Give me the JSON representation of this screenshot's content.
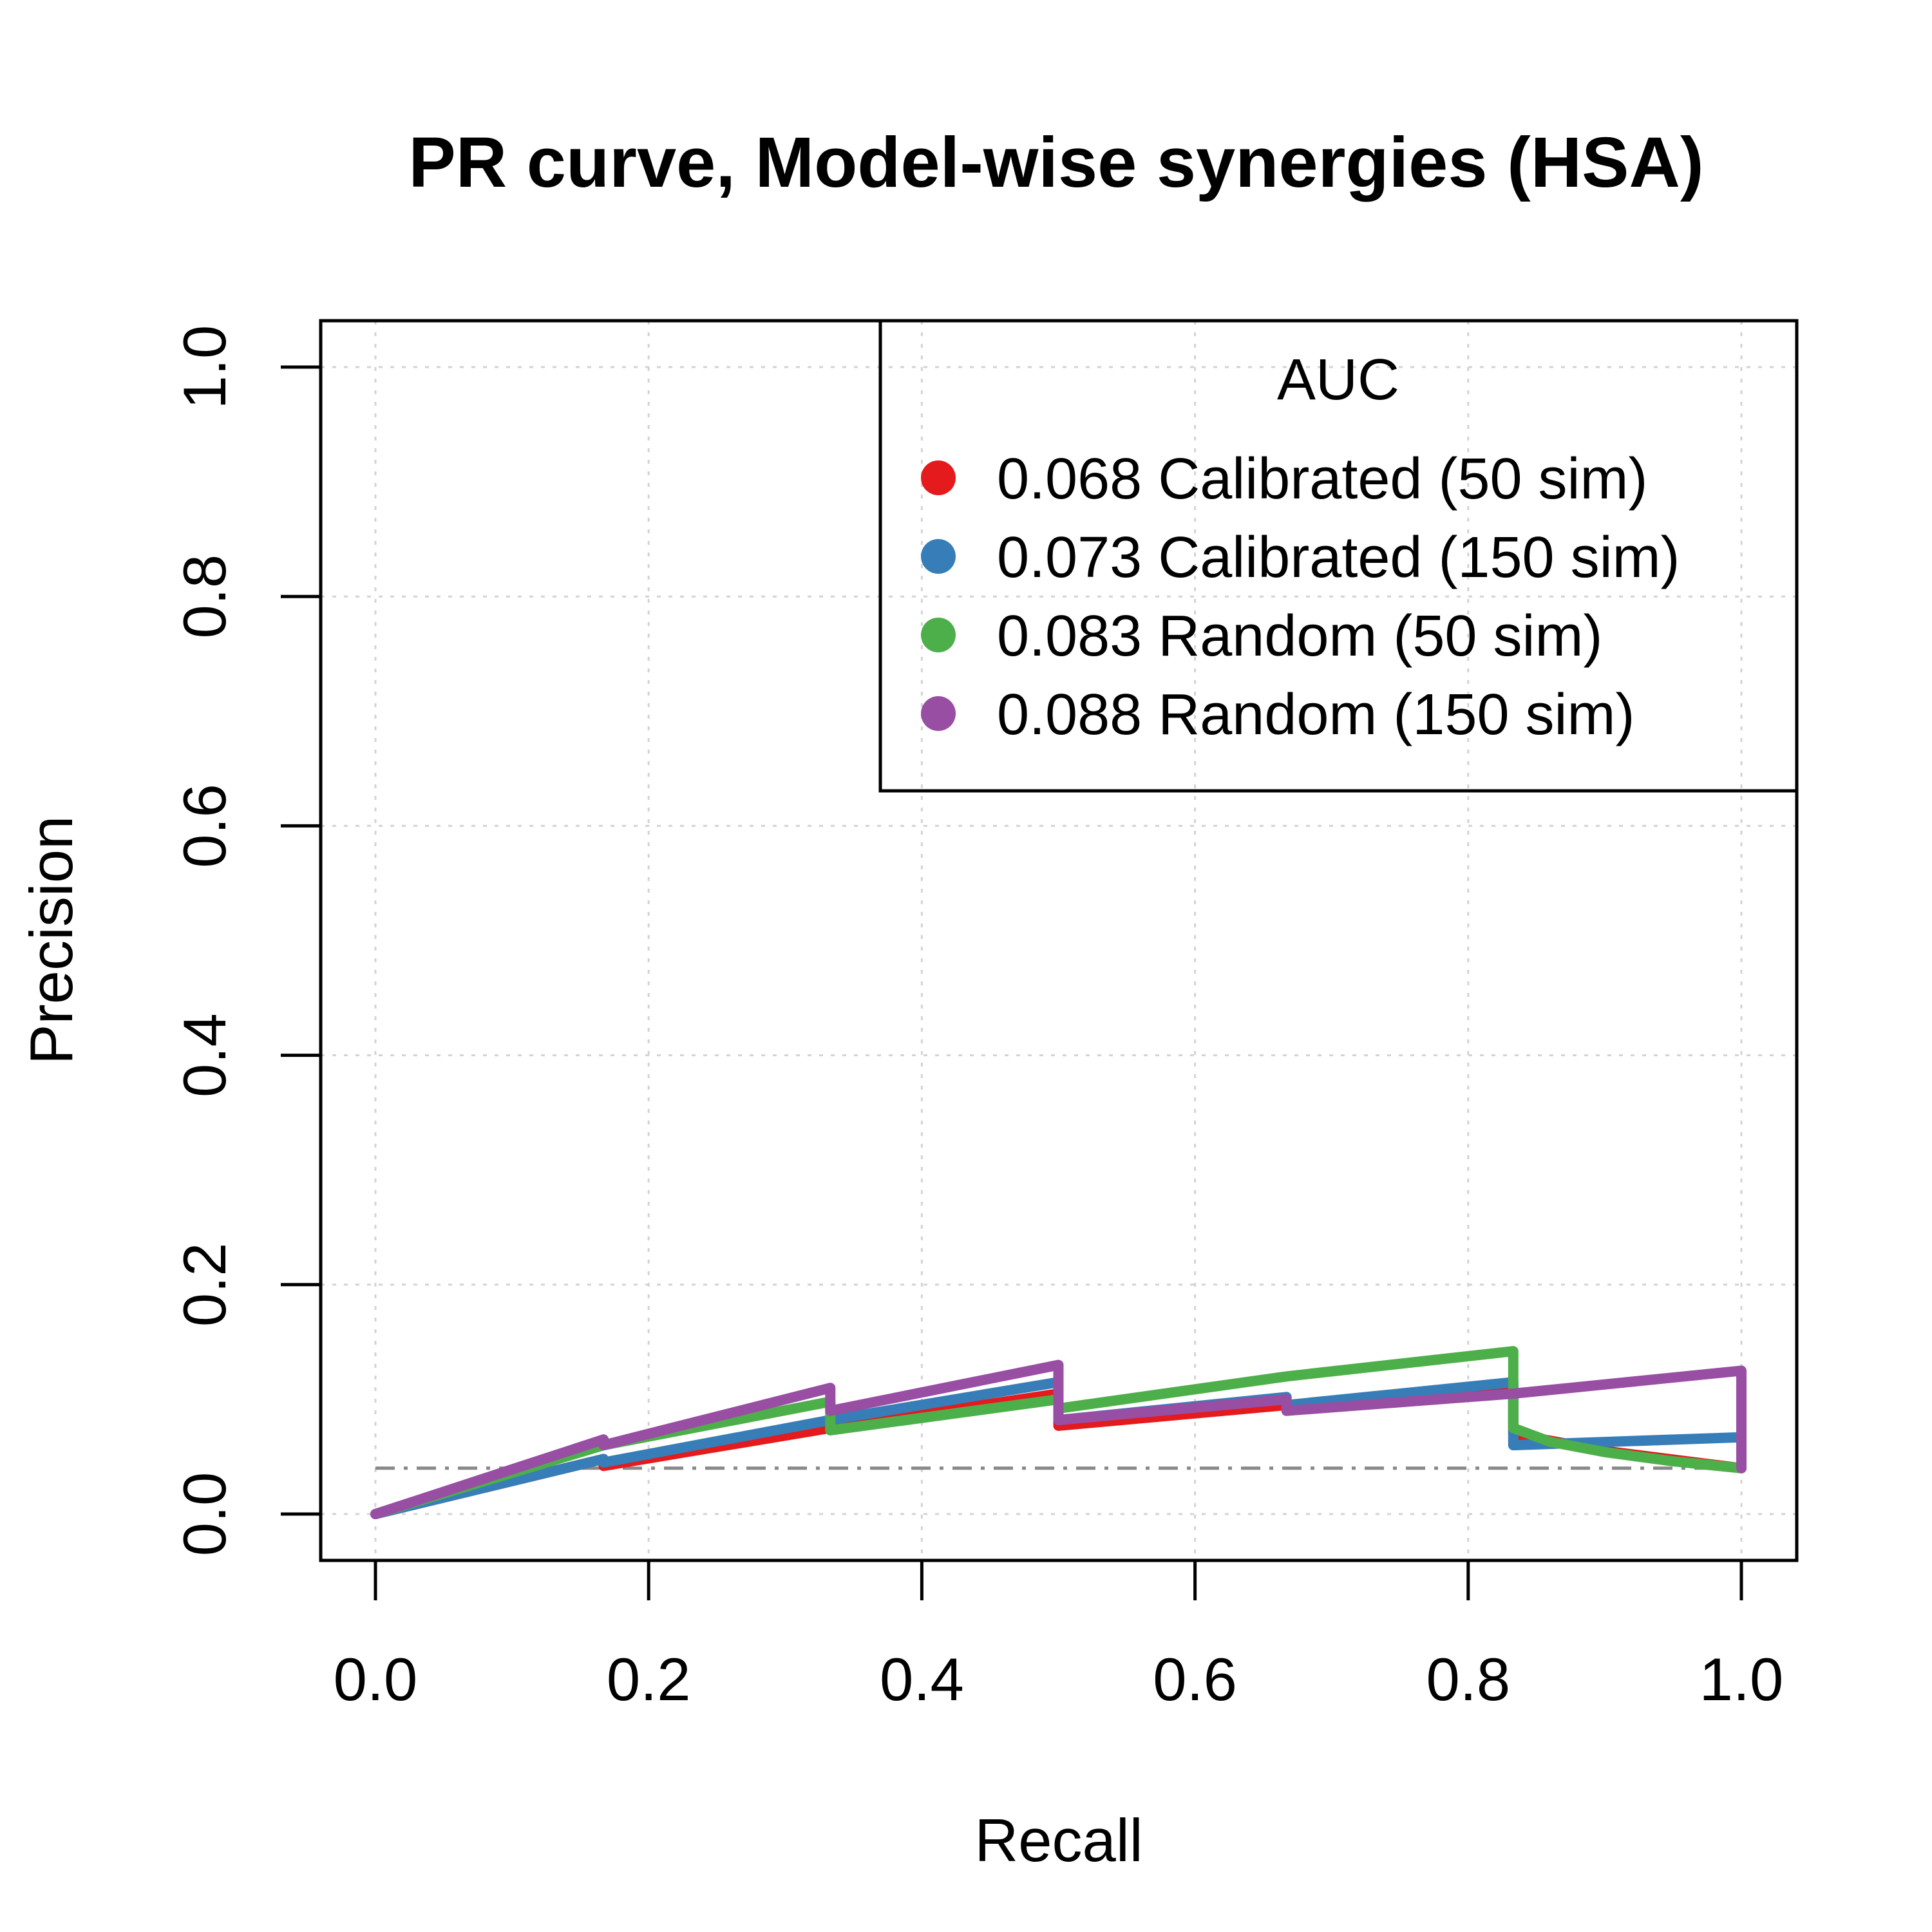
{
  "chart_data": {
    "type": "line",
    "title": "PR curve, Model-wise synergies (HSA)",
    "xlabel": "Recall",
    "ylabel": "Precision",
    "xlim": [
      0,
      1
    ],
    "ylim": [
      0,
      1
    ],
    "xticks": [
      "0.0",
      "0.2",
      "0.4",
      "0.6",
      "0.8",
      "1.0"
    ],
    "yticks": [
      "0.0",
      "0.2",
      "0.4",
      "0.6",
      "0.8",
      "1.0"
    ],
    "grid": true,
    "legend": {
      "placement": "top-right",
      "title": "AUC"
    },
    "baseline": {
      "y": 0.04,
      "style": "dash-dot",
      "color": "#888888"
    },
    "series": [
      {
        "name": "0.068 Calibrated (50 sim)",
        "color": "#E41A1C",
        "points": [
          [
            0,
            0
          ],
          [
            0.167,
            0.048
          ],
          [
            0.167,
            0.042
          ],
          [
            0.333,
            0.075
          ],
          [
            0.5,
            0.105
          ],
          [
            0.5,
            0.077
          ],
          [
            0.667,
            0.095
          ],
          [
            0.833,
            0.112
          ],
          [
            0.833,
            0.07
          ],
          [
            0.9,
            0.055
          ],
          [
            1.0,
            0.04
          ]
        ]
      },
      {
        "name": "0.073 Calibrated (150 sim)",
        "color": "#377EB8",
        "points": [
          [
            0,
            0
          ],
          [
            0.167,
            0.048
          ],
          [
            0.167,
            0.045
          ],
          [
            0.333,
            0.082
          ],
          [
            0.5,
            0.115
          ],
          [
            0.5,
            0.082
          ],
          [
            0.667,
            0.102
          ],
          [
            0.667,
            0.095
          ],
          [
            0.833,
            0.115
          ],
          [
            0.833,
            0.06
          ],
          [
            1.0,
            0.067
          ]
        ]
      },
      {
        "name": "0.083 Random (50 sim)",
        "color": "#4DAF4A",
        "points": [
          [
            0,
            0
          ],
          [
            0.167,
            0.06
          ],
          [
            0.333,
            0.098
          ],
          [
            0.333,
            0.073
          ],
          [
            0.5,
            0.1
          ],
          [
            0.5,
            0.092
          ],
          [
            0.667,
            0.12
          ],
          [
            0.833,
            0.142
          ],
          [
            0.833,
            0.075
          ],
          [
            0.86,
            0.063
          ],
          [
            0.9,
            0.054
          ],
          [
            0.95,
            0.046
          ],
          [
            1.0,
            0.04
          ]
        ]
      },
      {
        "name": "0.088 Random (150 sim)",
        "color": "#984EA3",
        "points": [
          [
            0,
            0
          ],
          [
            0.167,
            0.065
          ],
          [
            0.167,
            0.06
          ],
          [
            0.333,
            0.11
          ],
          [
            0.333,
            0.09
          ],
          [
            0.5,
            0.13
          ],
          [
            0.5,
            0.082
          ],
          [
            0.667,
            0.1
          ],
          [
            0.667,
            0.09
          ],
          [
            0.833,
            0.105
          ],
          [
            1.0,
            0.125
          ],
          [
            1.0,
            0.04
          ]
        ]
      }
    ]
  }
}
